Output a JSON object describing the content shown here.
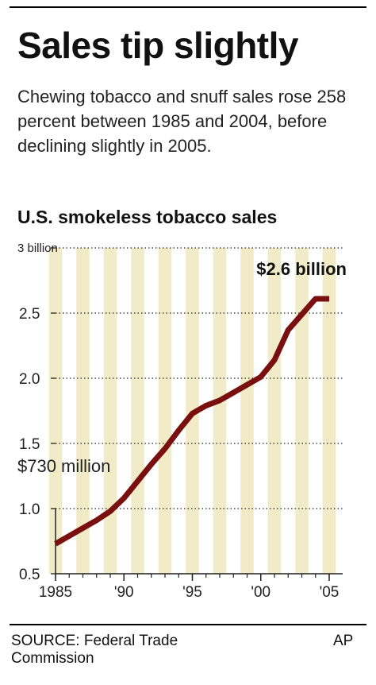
{
  "headline": "Sales tip slightly",
  "subtitle": "Chewing tobacco and snuff sales rose 258 percent between 1985 and 2004, before declining slightly in 2005.",
  "chart_title": "U.S. smokeless tobacco sales",
  "source": "SOURCE: Federal Trade Commission",
  "credit": "AP",
  "colors": {
    "line": "#7a0f0f",
    "stripe": "#f1ecc7",
    "grid": "#222222"
  },
  "chart_data": {
    "type": "line",
    "title": "U.S. smokeless tobacco sales",
    "xlabel": "",
    "ylabel": "",
    "x": [
      1985,
      1986,
      1987,
      1988,
      1989,
      1990,
      1991,
      1992,
      1993,
      1994,
      1995,
      1996,
      1997,
      1998,
      1999,
      2000,
      2001,
      2002,
      2003,
      2004,
      2005
    ],
    "series": [
      {
        "values": [
          0.73,
          0.79,
          0.85,
          0.91,
          0.98,
          1.08,
          1.21,
          1.34,
          1.46,
          1.6,
          1.73,
          1.79,
          1.83,
          1.89,
          1.95,
          2.01,
          2.14,
          2.37,
          2.49,
          2.61,
          2.61
        ]
      }
    ],
    "xlim": [
      1985,
      2005
    ],
    "ylim": [
      0.5,
      3.0
    ],
    "y_ticks": [
      0.5,
      1.0,
      1.5,
      2.0,
      2.5,
      3.0
    ],
    "y_tick_labels": [
      "0.5",
      "1.0",
      "1.5",
      "2.0",
      "2.5",
      "3 billion"
    ],
    "x_ticks": [
      1985,
      1990,
      1995,
      2000,
      2005
    ],
    "x_tick_labels": [
      "1985",
      "'90",
      "'95",
      "'00",
      "'05"
    ],
    "grid": "dotted horizontal",
    "annotations": [
      {
        "text": "$730 million",
        "x": 1985,
        "y": 0.73
      },
      {
        "text": "$2.6 billion",
        "x": 2005,
        "y": 2.61
      }
    ]
  }
}
